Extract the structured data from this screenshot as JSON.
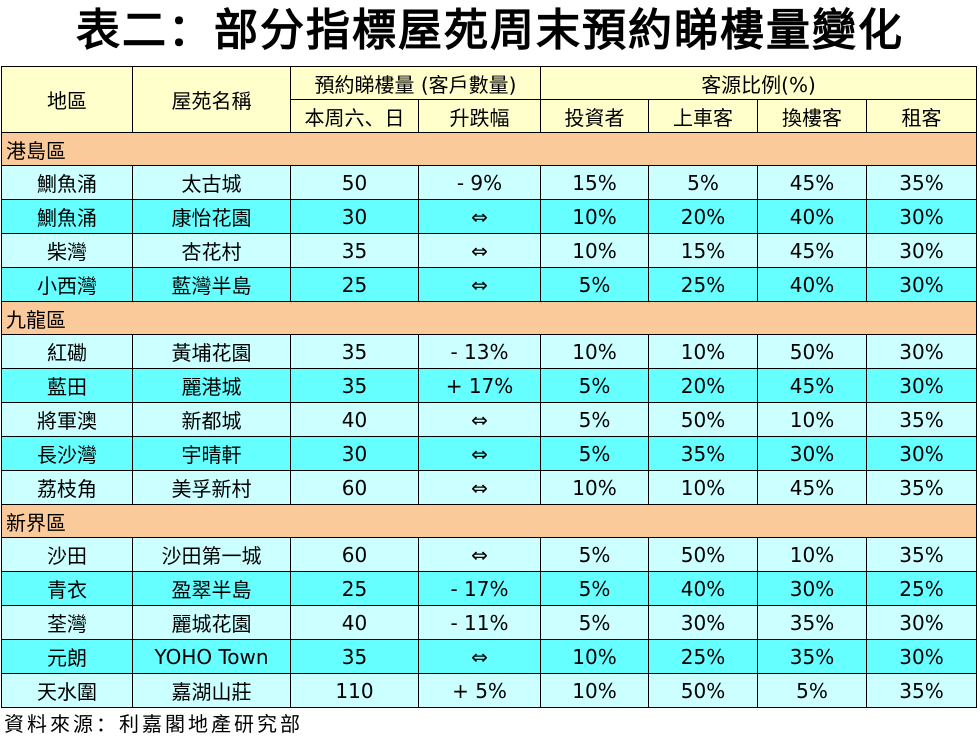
{
  "title": "表二：部分指標屋苑周末預約睇樓量變化",
  "table": {
    "headers": {
      "district": "地區",
      "estate": "屋苑名稱",
      "bookings": "預約睇樓量 (客戶數量)",
      "source_ratio": "客源比例(%)",
      "sub": [
        "本周六、日",
        "升跌幅",
        "投資者",
        "上車客",
        "換樓客",
        "租客"
      ]
    },
    "sections": [
      {
        "name": "港島區",
        "rows": [
          [
            "鰂魚涌",
            "太古城",
            "50",
            "- 9%",
            "15%",
            "5%",
            "45%",
            "35%"
          ],
          [
            "鰂魚涌",
            "康怡花園",
            "30",
            "⇔",
            "10%",
            "20%",
            "40%",
            "30%"
          ],
          [
            "柴灣",
            "杏花村",
            "35",
            "⇔",
            "10%",
            "15%",
            "45%",
            "30%"
          ],
          [
            "小西灣",
            "藍灣半島",
            "25",
            "⇔",
            "5%",
            "25%",
            "40%",
            "30%"
          ]
        ]
      },
      {
        "name": "九龍區",
        "rows": [
          [
            "紅磡",
            "黃埔花園",
            "35",
            "- 13%",
            "10%",
            "10%",
            "50%",
            "30%"
          ],
          [
            "藍田",
            "麗港城",
            "35",
            "+ 17%",
            "5%",
            "20%",
            "45%",
            "30%"
          ],
          [
            "將軍澳",
            "新都城",
            "40",
            "⇔",
            "5%",
            "50%",
            "10%",
            "35%"
          ],
          [
            "長沙灣",
            "宇晴軒",
            "30",
            "⇔",
            "5%",
            "35%",
            "30%",
            "30%"
          ],
          [
            "荔枝角",
            "美孚新村",
            "60",
            "⇔",
            "10%",
            "10%",
            "45%",
            "35%"
          ]
        ]
      },
      {
        "name": "新界區",
        "rows": [
          [
            "沙田",
            "沙田第一城",
            "60",
            "⇔",
            "5%",
            "50%",
            "10%",
            "35%"
          ],
          [
            "青衣",
            "盈翠半島",
            "25",
            "- 17%",
            "5%",
            "40%",
            "30%",
            "25%"
          ],
          [
            "荃灣",
            "麗城花園",
            "40",
            "- 11%",
            "5%",
            "30%",
            "35%",
            "30%"
          ],
          [
            "元朗",
            "YOHO Town",
            "35",
            "⇔",
            "10%",
            "25%",
            "35%",
            "30%"
          ],
          [
            "天水圍",
            "嘉湖山莊",
            "110",
            "+ 5%",
            "10%",
            "50%",
            "5%",
            "35%"
          ]
        ]
      }
    ]
  },
  "source": "資料來源：利嘉閣地產研究部"
}
